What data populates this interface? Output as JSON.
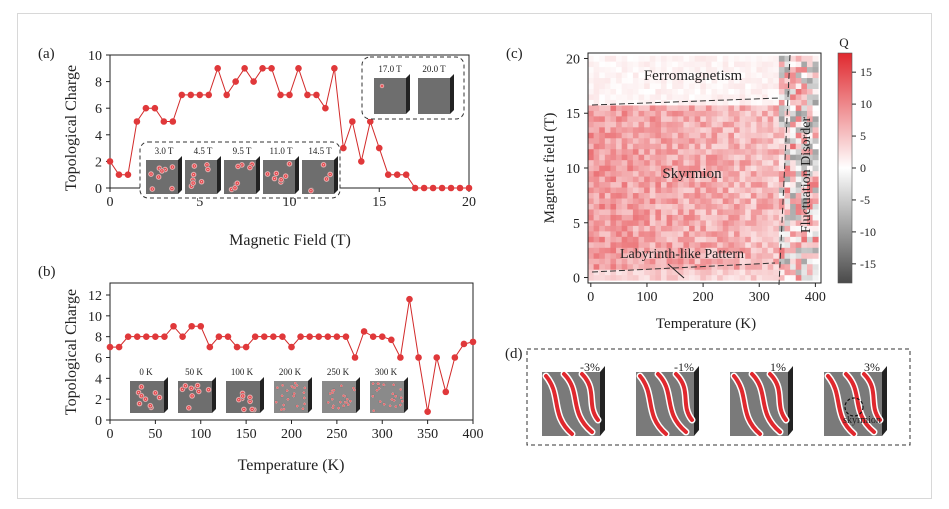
{
  "chart_data": [
    {
      "panel": "(a)",
      "type": "line",
      "xlabel": "Magnetic Field (T)",
      "ylabel": "Topological Charge",
      "xlim": [
        0,
        20
      ],
      "ylim": [
        0,
        10
      ],
      "xticks": [
        0,
        5,
        10,
        15,
        20
      ],
      "yticks": [
        0,
        2,
        4,
        6,
        8,
        10
      ],
      "grid": false,
      "x": [
        0,
        0.5,
        1,
        1.5,
        2,
        2.5,
        3,
        3.5,
        4,
        4.5,
        5,
        5.5,
        6,
        6.5,
        7,
        7.5,
        8,
        8.5,
        9,
        9.5,
        10,
        10.5,
        11,
        11.5,
        12,
        12.5,
        13,
        13.5,
        14,
        14.5,
        15,
        15.5,
        16,
        16.5,
        17,
        17.5,
        18,
        18.5,
        19,
        19.5,
        20
      ],
      "y": [
        2,
        1,
        1,
        5,
        6,
        6,
        5,
        5,
        7,
        7,
        7,
        7,
        9,
        7,
        8,
        9,
        8,
        9,
        9,
        7,
        7,
        9,
        7,
        7,
        6,
        9,
        3,
        5,
        2,
        5,
        3,
        1,
        1,
        1,
        0,
        0,
        0,
        0,
        0,
        0,
        0
      ],
      "insets": {
        "low_field": [
          "3.0 T",
          "4.5 T",
          "9.5 T",
          "11.0 T",
          "14.5 T"
        ],
        "high_field": [
          "17.0 T",
          "20.0 T"
        ]
      }
    },
    {
      "panel": "(b)",
      "type": "line",
      "xlabel": "Temperature (K)",
      "ylabel": "Topological Charge",
      "xlim": [
        0,
        400
      ],
      "ylim": [
        0,
        12
      ],
      "xticks": [
        0,
        50,
        100,
        150,
        200,
        250,
        300,
        350,
        400
      ],
      "yticks": [
        0,
        2,
        4,
        6,
        8,
        10,
        12
      ],
      "grid": false,
      "x": [
        0,
        10,
        20,
        30,
        40,
        50,
        60,
        70,
        80,
        90,
        100,
        110,
        120,
        130,
        140,
        150,
        160,
        170,
        180,
        190,
        200,
        210,
        220,
        230,
        240,
        250,
        260,
        270,
        280,
        290,
        300,
        310,
        320,
        330,
        340,
        350,
        360,
        370,
        380,
        390,
        400
      ],
      "y": [
        7,
        7,
        8,
        8,
        8,
        8,
        8,
        9,
        8,
        9,
        9,
        7,
        8,
        8,
        7,
        7,
        8,
        8,
        8,
        8,
        7,
        8,
        8,
        8,
        8,
        8,
        8,
        6,
        8.5,
        8,
        8,
        7.7,
        6,
        11.6,
        6,
        0.8,
        6,
        2.7,
        6,
        7.3,
        7.5
      ],
      "insets": [
        "0 K",
        "50 K",
        "100 K",
        "200 K",
        "250 K",
        "300 K"
      ]
    },
    {
      "panel": "(c)",
      "type": "heatmap",
      "xlabel": "Temperature (K)",
      "ylabel": "Magnetic field (T)",
      "xlim": [
        -5,
        410
      ],
      "ylim": [
        -0.5,
        20.5
      ],
      "xticks": [
        0,
        100,
        200,
        300,
        400
      ],
      "yticks": [
        0,
        5,
        10,
        15,
        20
      ],
      "colorbar": {
        "label": "Q",
        "min": -18,
        "max": 18,
        "ticks": [
          15,
          10,
          5,
          0,
          -5,
          -10,
          -15
        ],
        "low_color": "#4a4a4a",
        "mid_color": "#ffffff",
        "high_color": "#e0282e"
      },
      "regions": [
        "Ferromagnetism",
        "Skyrmion",
        "Labyrinth-like Pattern",
        "Fluctuation Disorder"
      ]
    },
    {
      "panel": "(d)",
      "type": "image_series",
      "labels": [
        "-3%",
        "-1%",
        "1%",
        "3%"
      ],
      "annotation": "skyrmion"
    }
  ]
}
